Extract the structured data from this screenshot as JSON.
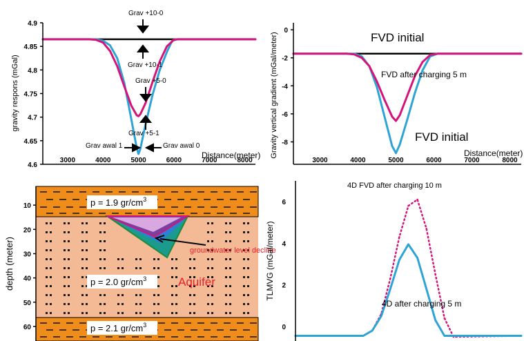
{
  "chart_data": [
    {
      "id": "top_left",
      "type": "line",
      "ylabel": "gravity respons (mGal)",
      "xlabel": "Distance(meter)",
      "xlim": [
        2300,
        8300
      ],
      "ylim": [
        4.6,
        4.9
      ],
      "x_ticks": [
        "3000",
        "4000",
        "5000",
        "6000",
        "7000",
        "8000"
      ],
      "x_tick_values": [
        3000,
        4000,
        5000,
        6000,
        7000,
        8000
      ],
      "y_ticks": [
        "4.9",
        "4.85",
        "4.8",
        "4.75",
        "4.7",
        "4.65",
        "4.6"
      ],
      "y_tick_values": [
        4.9,
        4.85,
        4.8,
        4.75,
        4.7,
        4.65,
        4.6
      ],
      "series": [
        {
          "role": "baseline",
          "color": "#000000",
          "x": [
            2300,
            8300
          ],
          "y": [
            4.865,
            4.865
          ]
        },
        {
          "role": "grav_awal",
          "color": "#2ea3d6",
          "x": [
            2300,
            3800,
            4000,
            4200,
            4400,
            4600,
            4800,
            4950,
            5000,
            5050,
            5200,
            5400,
            5600,
            5800,
            5950,
            6100,
            8300
          ],
          "y": [
            4.865,
            4.865,
            4.862,
            4.852,
            4.825,
            4.772,
            4.695,
            4.635,
            4.622,
            4.632,
            4.685,
            4.748,
            4.8,
            4.838,
            4.862,
            4.865,
            4.865
          ]
        },
        {
          "role": "grav_5",
          "color": "#d4147a",
          "x": [
            2300,
            3600,
            3800,
            4000,
            4200,
            4400,
            4600,
            4800,
            4950,
            5000,
            5050,
            5200,
            5400,
            5600,
            5800,
            6000,
            6100,
            8300
          ],
          "y": [
            4.865,
            4.865,
            4.864,
            4.858,
            4.84,
            4.808,
            4.765,
            4.724,
            4.704,
            4.702,
            4.706,
            4.73,
            4.775,
            4.818,
            4.85,
            4.864,
            4.865,
            4.865
          ]
        }
      ],
      "annotations": [
        "Grav +10-0",
        "Grav +10-1",
        "Grav +5-0",
        "Grav +5-1",
        "Grav awal 1",
        "Grav awal 0"
      ]
    },
    {
      "id": "top_right",
      "type": "line",
      "ylabel": "Gravity vertical gradient (mGal/meter)",
      "xlabel": "Distance(meter)",
      "xlim": [
        2300,
        8300
      ],
      "ylim": [
        -9.6,
        0.5
      ],
      "x_ticks": [
        "3000",
        "4000",
        "5000",
        "6000",
        "7000",
        "8000"
      ],
      "x_tick_values": [
        3000,
        4000,
        5000,
        6000,
        7000,
        8000
      ],
      "y_ticks": [
        "0",
        "-2",
        "-4",
        "-6",
        "-8"
      ],
      "y_tick_values": [
        0,
        -2,
        -4,
        -6,
        -8
      ],
      "series": [
        {
          "role": "fvd_baseline",
          "color": "#000000",
          "x": [
            2300,
            8300
          ],
          "y": [
            -1.7,
            -1.7
          ]
        },
        {
          "role": "fvd_initial",
          "color": "#2ea3d6",
          "x": [
            2300,
            3900,
            4100,
            4300,
            4500,
            4700,
            4900,
            5000,
            5100,
            5300,
            5500,
            5700,
            5900,
            6100,
            8300
          ],
          "y": [
            -1.7,
            -1.7,
            -1.9,
            -2.6,
            -4.1,
            -6.2,
            -8.3,
            -8.8,
            -8.2,
            -6.4,
            -4.5,
            -2.9,
            -1.9,
            -1.7,
            -1.7
          ]
        },
        {
          "role": "fvd_after_5m",
          "color": "#d4147a",
          "x": [
            2300,
            3700,
            3900,
            4100,
            4300,
            4500,
            4700,
            4900,
            5000,
            5100,
            5300,
            5500,
            5700,
            5900,
            6100,
            8300
          ],
          "y": [
            -1.7,
            -1.7,
            -1.75,
            -2.0,
            -2.6,
            -3.7,
            -5.0,
            -6.2,
            -6.5,
            -6.1,
            -4.7,
            -3.3,
            -2.3,
            -1.8,
            -1.7,
            -1.7
          ]
        }
      ],
      "annotations": [
        "FVD initial",
        "FVD after charging 5 m",
        "FVD initial"
      ]
    },
    {
      "id": "bottom_left",
      "type": "diagram",
      "ylabel": "depth (meter)",
      "y_ticks": [
        "10",
        "20",
        "30",
        "40",
        "50",
        "60"
      ],
      "y_tick_values": [
        10,
        20,
        30,
        40,
        50,
        60
      ],
      "ylim": [
        0,
        66
      ],
      "layers": [
        {
          "label": "p = 1.9 gr/cm",
          "sup": "3",
          "top": 0,
          "bottom": 12,
          "color": "#f08c1a",
          "texture": "dash"
        },
        {
          "label": "p = 2.0 gr/cm",
          "sup": "3",
          "top": 12,
          "bottom": 54,
          "color": "#f4ba95",
          "texture": "dots"
        },
        {
          "label": "p = 2.1 gr/cm",
          "sup": "3",
          "top": 54,
          "bottom": 66,
          "color": "#f08c1a",
          "texture": "dash"
        }
      ],
      "aquifer_label": "Aquifer",
      "decline_label": "groundwater level decline",
      "colors": {
        "aquifer": "#e8202a",
        "decline": "#e8202a"
      }
    },
    {
      "id": "bottom_right",
      "type": "line",
      "title": "4D FVD after charging 10 m",
      "ylabel": "TLMVG (mGal/meter)",
      "xlim": [
        0,
        100
      ],
      "ylim": [
        -0.7,
        7.0
      ],
      "y_ticks": [
        "6",
        "4",
        "2",
        "0"
      ],
      "y_tick_values": [
        6,
        4,
        2,
        0
      ],
      "series": [
        {
          "role": "after_10m",
          "color": "#d4147a",
          "dotted": true,
          "x": [
            0,
            30,
            34,
            38,
            42,
            46,
            50,
            54,
            58,
            62,
            66,
            70,
            100
          ],
          "y": [
            -0.45,
            -0.45,
            -0.2,
            0.6,
            2.3,
            4.3,
            5.8,
            6.1,
            4.7,
            2.5,
            0.4,
            -0.5,
            -0.45
          ]
        },
        {
          "role": "after_5m",
          "color": "#2ea3d6",
          "dotted": false,
          "x": [
            0,
            30,
            34,
            38,
            42,
            46,
            50,
            54,
            58,
            62,
            66,
            70,
            100
          ],
          "y": [
            -0.45,
            -0.45,
            -0.2,
            0.5,
            1.8,
            3.2,
            3.95,
            3.3,
            1.8,
            0.3,
            -0.45,
            -0.45,
            -0.45
          ]
        }
      ],
      "annotations": [
        "4D after charging 5 m"
      ]
    }
  ]
}
